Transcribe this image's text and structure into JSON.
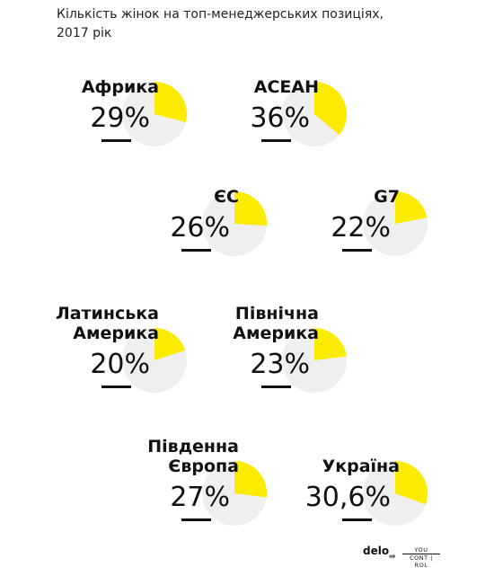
{
  "title": "Кількість жінок на топ-менеджерських позиціях,\n2017 рік",
  "logos": {
    "delo": "delo",
    "delo_ua": "ua",
    "youcontrol_line1": "YOU",
    "youcontrol_line2": "CONT | ROL"
  },
  "colors": {
    "slice": "#FAEB00",
    "pie_bg": "#EFEFEF",
    "text": "#111111"
  },
  "chart_data": {
    "type": "pie",
    "title": "Кількість жінок на топ-менеджерських позиціях, 2017 рік",
    "unit": "%",
    "items": [
      {
        "label": "Африка",
        "value": 29,
        "display": "29%"
      },
      {
        "label": "АСЕАН",
        "value": 36,
        "display": "36%"
      },
      {
        "label": "ЄС",
        "value": 26,
        "display": "26%"
      },
      {
        "label": "G7",
        "value": 22,
        "display": "22%"
      },
      {
        "label": "Латинська\nАмерика",
        "value": 20,
        "display": "20%"
      },
      {
        "label": "Північна\nАмерика",
        "value": 23,
        "display": "23%"
      },
      {
        "label": "Південна\nЄвропа",
        "value": 27,
        "display": "27%"
      },
      {
        "label": "Україна",
        "value": 30.6,
        "display": "30,6%"
      }
    ]
  }
}
